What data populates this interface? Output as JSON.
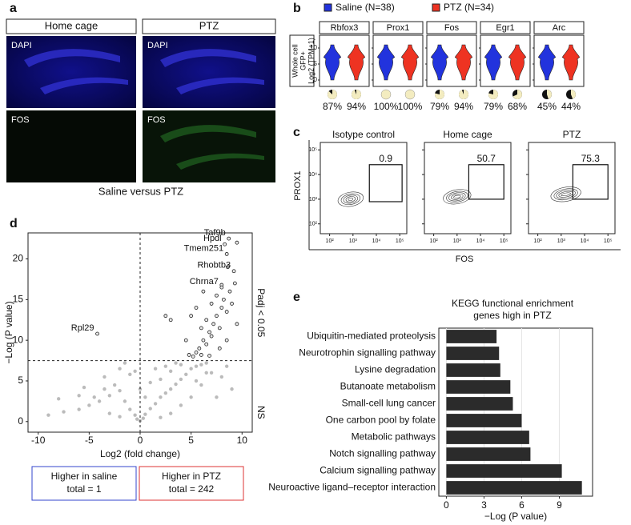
{
  "panel_a": {
    "label": "a",
    "headers": [
      "Home cage",
      "PTZ"
    ],
    "row_labels": [
      "DAPI",
      "FOS"
    ],
    "caption": "Saline versus PTZ"
  },
  "chart_data": [
    {
      "type": "violin",
      "label": "b",
      "categories": [
        "Rbfox3",
        "Prox1",
        "Fos",
        "Egr1",
        "Arc"
      ],
      "ylabel": [
        "Whole cell",
        "GFP+",
        "Log2 (TPM+1)"
      ],
      "ylim": [
        -2,
        14
      ],
      "yticks": [
        0,
        5,
        10
      ],
      "series": [
        {
          "name": "Saline (N=38)",
          "color": "#2233dd",
          "values": [
            87,
            100,
            79,
            79,
            45
          ],
          "value_labels": [
            "87%",
            "100%",
            "79%",
            "79%",
            "45%"
          ]
        },
        {
          "name": "PTZ (N=34)",
          "color": "#ee3322",
          "values": [
            94,
            100,
            94,
            68,
            44
          ],
          "value_labels": [
            "94%",
            "100%",
            "94%",
            "68%",
            "44%"
          ]
        }
      ]
    },
    {
      "type": "flow",
      "label": "c",
      "xlabel": "FOS",
      "ylabel": "PROX1",
      "log_scale": true,
      "xlim": [
        40,
        200000
      ],
      "ylim": [
        40,
        200000
      ],
      "xticks": [
        {
          "value": 100,
          "label": "10²"
        },
        {
          "value": 1000,
          "label": "10³"
        },
        {
          "value": 10000,
          "label": "10⁴"
        },
        {
          "value": 100000,
          "label": "10⁵"
        }
      ],
      "yticks": [
        {
          "value": 100,
          "label": "10²"
        },
        {
          "value": 1000,
          "label": "10³"
        },
        {
          "value": 10000,
          "label": "10⁴"
        },
        {
          "value": 100000,
          "label": "10⁵"
        }
      ],
      "panels": [
        {
          "title": "Isotype control",
          "gate": 0.9
        },
        {
          "title": "Home cage",
          "gate": 50.7
        },
        {
          "title": "PTZ",
          "gate": 75.3
        }
      ]
    },
    {
      "type": "scatter",
      "label": "d",
      "xlabel": "Log2 (fold change)",
      "ylabel": "−Log (P value)",
      "xlim": [
        -11,
        11
      ],
      "ylim": [
        -1.3,
        23.2
      ],
      "xticks": [
        -10,
        -5,
        0,
        5,
        10
      ],
      "yticks": [
        0,
        5,
        10,
        15,
        20
      ],
      "hline": 7.5,
      "vline": 0,
      "side_labels": [
        "Padj < 0.05",
        "NS"
      ],
      "series": [
        {
          "color": "#bbbbbb",
          "x": [
            -9,
            -7.5,
            -6,
            -5,
            -4.5,
            -4,
            -3.5,
            -3,
            -2.5,
            -2,
            -1.5,
            -1,
            -0.5,
            -0.3,
            0,
            0.3,
            0.5,
            1,
            1.5,
            2,
            2.5,
            3,
            3.5,
            4,
            4.5,
            5,
            5.5,
            6,
            6.5,
            3,
            2,
            4,
            1,
            -1,
            -2,
            0.5,
            7,
            8,
            9,
            6,
            5,
            4,
            3,
            2,
            -3,
            -2,
            1.5,
            3.5,
            -0.5,
            7.5,
            -6,
            -8,
            -5.5,
            -3.5,
            0,
            2.5,
            5.5,
            6.5,
            8.5,
            -1.5
          ],
          "y": [
            0.8,
            1.2,
            1.5,
            2,
            3,
            2.5,
            4,
            3.2,
            4.5,
            3.8,
            2.5,
            1.5,
            0.8,
            0.3,
            0.1,
            0.4,
            0.9,
            1.6,
            2.2,
            3,
            3.5,
            4,
            4.6,
            5.2,
            5.8,
            6.5,
            6.8,
            7,
            7.2,
            6.2,
            5.2,
            7,
            4.8,
            5.8,
            6.5,
            3,
            6,
            5.5,
            4,
            4.5,
            3,
            2,
            1,
            0.5,
            1,
            0.6,
            6.5,
            7.2,
            6.2,
            3,
            3.2,
            2.8,
            4.2,
            5.5,
            4,
            6.8,
            5,
            6,
            6.8,
            7.2
          ]
        },
        {
          "color": "#222222",
          "x": [
            5.2,
            5.5,
            5.8,
            6,
            6.2,
            6.5,
            6.8,
            7,
            7.2,
            7.5,
            7.8,
            8,
            8.2,
            8.5,
            8.8,
            9,
            9.3,
            6,
            6.5,
            7,
            7.5,
            5.5,
            4.5,
            5,
            6.2,
            3,
            2.5,
            7.8,
            8.5,
            9.5,
            4.8,
            6.8,
            8,
            8.6,
            9.2,
            8,
            8.5,
            8.3,
            8.7,
            9.5,
            -4.2
          ],
          "y": [
            8,
            8.5,
            9,
            8.2,
            10,
            9.5,
            11,
            10.5,
            12,
            13,
            11.5,
            14,
            15,
            13.5,
            16,
            14.5,
            17,
            11.5,
            12.5,
            14.5,
            15.5,
            14,
            10,
            13,
            16,
            12.5,
            13,
            9,
            10,
            12,
            8.2,
            8.1,
            16.8,
            19,
            18.5,
            16.5,
            20.6,
            21.8,
            22.5,
            22,
            10.8
          ]
        }
      ],
      "annotations": [
        {
          "text": "Taf9b",
          "x": 8.7,
          "y": 22.5
        },
        {
          "text": "Hpdl",
          "x": 8.3,
          "y": 21.8
        },
        {
          "text": "Tmem251",
          "x": 8.5,
          "y": 20.6
        },
        {
          "text": "Rhobtb3",
          "x": 9.2,
          "y": 18.5
        },
        {
          "text": "Chrna7",
          "x": 8.0,
          "y": 16.5
        },
        {
          "text": "Rpl29",
          "x": -4.2,
          "y": 10.8
        }
      ],
      "boxes": [
        {
          "lines": [
            "Higher in saline",
            "total = 1"
          ],
          "color": "#3344cc"
        },
        {
          "lines": [
            "Higher in PTZ",
            "total = 242"
          ],
          "color": "#dd3333"
        }
      ]
    },
    {
      "type": "bar",
      "label": "e",
      "orientation": "horizontal",
      "title": [
        "KEGG functional enrichment",
        "genes high in PTZ"
      ],
      "xlabel": "−Log (P value)",
      "color": "#2b2b2b",
      "xlim": [
        -0.6,
        11.65
      ],
      "xticks": [
        0,
        3,
        6,
        9
      ],
      "categories": [
        "Ubiquitin-mediated proteolysis",
        "Neurotrophin signalling pathway",
        "Lysine degradation",
        "Butanoate metabolism",
        "Small-cell lung cancer",
        "One carbon pool by folate",
        "Metabolic pathways",
        "Notch signalling pathway",
        "Calcium signalling pathway",
        "Neuroactive ligand–receptor interaction"
      ],
      "values": [
        4.0,
        4.2,
        4.3,
        5.1,
        5.3,
        6.0,
        6.6,
        6.7,
        9.2,
        10.8
      ]
    }
  ]
}
